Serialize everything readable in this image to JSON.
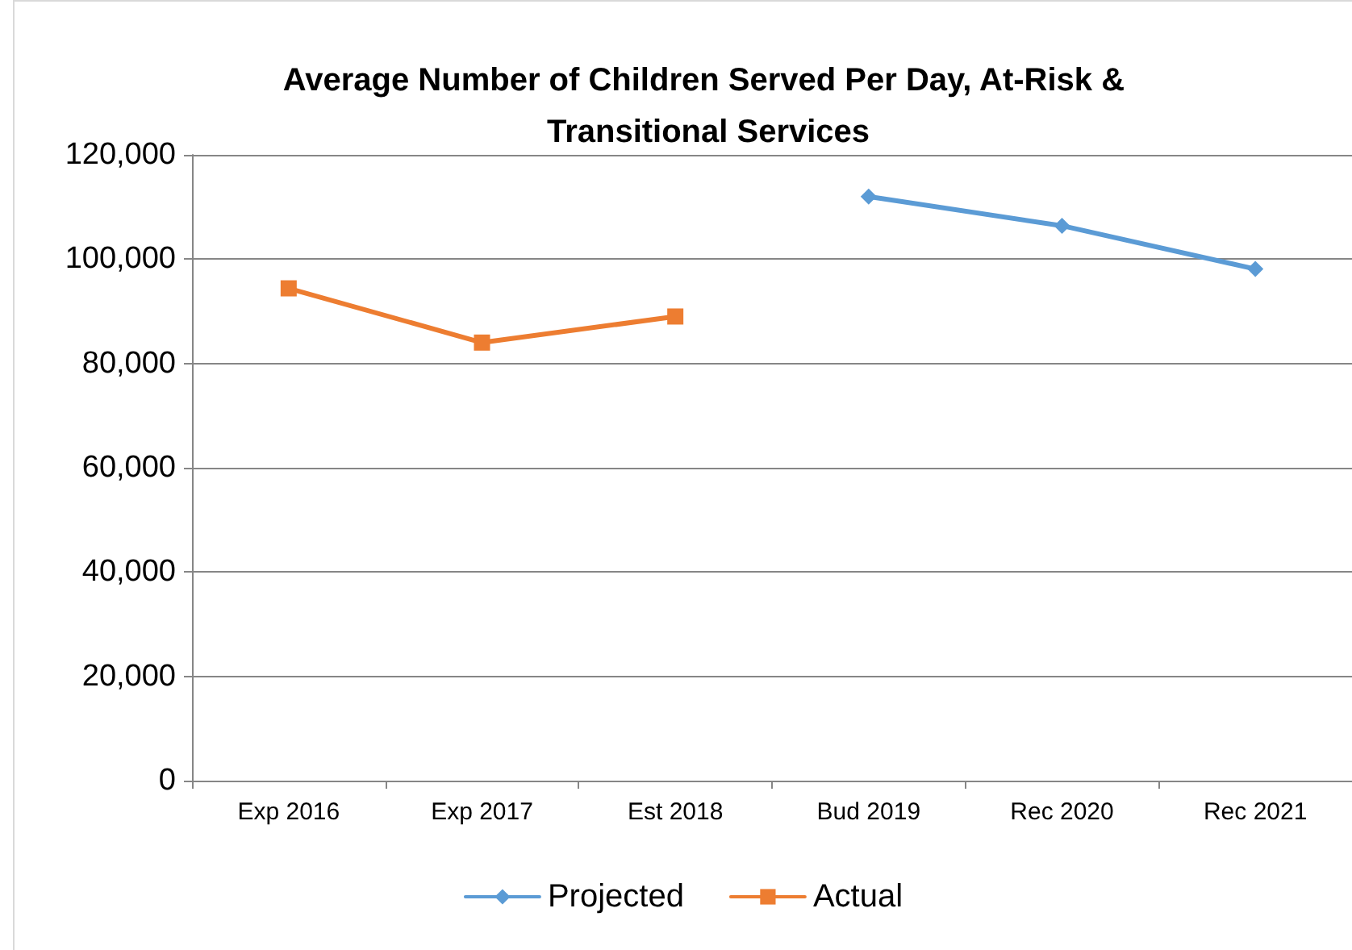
{
  "chart_data": {
    "type": "line",
    "title": "Average Number of Children Served Per Day, At-Risk & Transitional Services",
    "categories": [
      "Exp 2016",
      "Exp 2017",
      "Est 2018",
      "Bud 2019",
      "Rec 2020",
      "Rec 2021"
    ],
    "series": [
      {
        "name": "Projected",
        "color": "#5b9bd5",
        "marker": "diamond",
        "values": [
          null,
          null,
          null,
          112000,
          106400,
          98100
        ]
      },
      {
        "name": "Actual",
        "color": "#ed7d31",
        "marker": "square",
        "values": [
          94400,
          84000,
          89000,
          null,
          null,
          null
        ]
      }
    ],
    "ylim": [
      0,
      120000
    ],
    "yticks": [
      0,
      {
        "value": 20000,
        "label": "20,000"
      },
      {
        "value": 40000,
        "label": "40,000"
      },
      {
        "value": 60000,
        "label": "60,000"
      },
      {
        "value": 80000,
        "label": "80,000"
      },
      {
        "value": 100000,
        "label": "100,000"
      },
      {
        "value": 120000,
        "label": "120,000"
      }
    ],
    "grid": "y",
    "legend": "bottom",
    "line_style": "solid"
  }
}
